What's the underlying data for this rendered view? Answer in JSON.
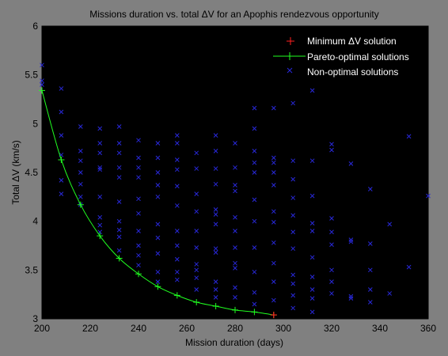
{
  "chart_data": {
    "type": "scatter",
    "title": "Missions duration vs. total ΔV for an Apophis rendezvous opportunity",
    "xlabel": "Mission duration (days)",
    "ylabel": "Total ΔV (km/s)",
    "xlim": [
      200,
      360
    ],
    "ylim": [
      3,
      6
    ],
    "xticks": [
      200,
      220,
      240,
      260,
      280,
      300,
      320,
      340,
      360
    ],
    "yticks": [
      3,
      3.5,
      4,
      4.5,
      5,
      5.5,
      6
    ],
    "grid": false,
    "legend_position": "top-right",
    "colors": {
      "figure_bg": "#808080",
      "axes_bg": "#000000",
      "minimum": "#ff2020",
      "pareto": "#20ff20",
      "non_optimal": "#2828d8",
      "legend_text": "#ffffff"
    },
    "series": [
      {
        "name": "Minimum ΔV solution",
        "marker": "+",
        "points": [
          [
            296,
            3.04
          ]
        ]
      },
      {
        "name": "Pareto-optimal solutions",
        "marker": "+",
        "line": true,
        "points": [
          [
            200,
            5.34
          ],
          [
            208,
            4.63
          ],
          [
            216,
            4.17
          ],
          [
            224,
            3.85
          ],
          [
            232,
            3.62
          ],
          [
            240,
            3.46
          ],
          [
            248,
            3.33
          ],
          [
            256,
            3.24
          ],
          [
            264,
            3.17
          ],
          [
            272,
            3.13
          ],
          [
            280,
            3.09
          ],
          [
            288,
            3.07
          ],
          [
            296,
            3.04
          ]
        ]
      },
      {
        "name": "Non-optimal solutions",
        "marker": "x",
        "points": [
          [
            200,
            5.6
          ],
          [
            200,
            5.44
          ],
          [
            200,
            5.4
          ],
          [
            208,
            5.36
          ],
          [
            208,
            5.12
          ],
          [
            208,
            4.88
          ],
          [
            208,
            4.68
          ],
          [
            208,
            4.42
          ],
          [
            208,
            4.28
          ],
          [
            216,
            4.97
          ],
          [
            216,
            4.72
          ],
          [
            216,
            4.62
          ],
          [
            216,
            4.5
          ],
          [
            216,
            4.38
          ],
          [
            216,
            4.25
          ],
          [
            216,
            4.17
          ],
          [
            224,
            4.95
          ],
          [
            224,
            4.8
          ],
          [
            224,
            4.7
          ],
          [
            224,
            4.55
          ],
          [
            224,
            4.53
          ],
          [
            224,
            4.25
          ],
          [
            224,
            4.04
          ],
          [
            224,
            3.96
          ],
          [
            224,
            3.89
          ],
          [
            232,
            4.97
          ],
          [
            232,
            4.8
          ],
          [
            232,
            4.7
          ],
          [
            232,
            4.55
          ],
          [
            232,
            4.45
          ],
          [
            232,
            4.2
          ],
          [
            232,
            4.0
          ],
          [
            232,
            3.91
          ],
          [
            232,
            3.84
          ],
          [
            232,
            3.7
          ],
          [
            240,
            4.83
          ],
          [
            240,
            4.65
          ],
          [
            240,
            4.55
          ],
          [
            240,
            4.45
          ],
          [
            240,
            4.23
          ],
          [
            240,
            4.08
          ],
          [
            240,
            3.9
          ],
          [
            240,
            3.75
          ],
          [
            240,
            3.65
          ],
          [
            240,
            3.55
          ],
          [
            248,
            4.8
          ],
          [
            248,
            4.65
          ],
          [
            248,
            4.5
          ],
          [
            248,
            4.37
          ],
          [
            248,
            4.25
          ],
          [
            248,
            3.97
          ],
          [
            248,
            3.83
          ],
          [
            248,
            3.67
          ],
          [
            248,
            3.48
          ],
          [
            248,
            3.38
          ],
          [
            256,
            4.88
          ],
          [
            256,
            4.8
          ],
          [
            256,
            4.63
          ],
          [
            256,
            4.53
          ],
          [
            256,
            4.36
          ],
          [
            256,
            4.16
          ],
          [
            256,
            3.9
          ],
          [
            256,
            3.75
          ],
          [
            256,
            3.61
          ],
          [
            256,
            3.48
          ],
          [
            256,
            3.4
          ],
          [
            264,
            4.7
          ],
          [
            264,
            4.54
          ],
          [
            264,
            4.28
          ],
          [
            264,
            4.1
          ],
          [
            264,
            3.9
          ],
          [
            264,
            3.73
          ],
          [
            264,
            3.56
          ],
          [
            264,
            3.5
          ],
          [
            264,
            3.42
          ],
          [
            264,
            3.3
          ],
          [
            272,
            4.88
          ],
          [
            272,
            4.72
          ],
          [
            272,
            4.54
          ],
          [
            272,
            4.38
          ],
          [
            272,
            4.12
          ],
          [
            272,
            4.07
          ],
          [
            272,
            3.97
          ],
          [
            272,
            3.72
          ],
          [
            272,
            3.68
          ],
          [
            272,
            3.38
          ],
          [
            272,
            3.3
          ],
          [
            272,
            3.22
          ],
          [
            280,
            4.8
          ],
          [
            280,
            4.55
          ],
          [
            280,
            4.37
          ],
          [
            280,
            4.31
          ],
          [
            280,
            4.04
          ],
          [
            280,
            3.9
          ],
          [
            280,
            3.73
          ],
          [
            280,
            3.57
          ],
          [
            280,
            3.52
          ],
          [
            280,
            3.32
          ],
          [
            280,
            3.22
          ],
          [
            288,
            5.16
          ],
          [
            288,
            4.95
          ],
          [
            288,
            4.72
          ],
          [
            288,
            4.6
          ],
          [
            288,
            4.5
          ],
          [
            288,
            4.22
          ],
          [
            288,
            4.0
          ],
          [
            288,
            3.73
          ],
          [
            288,
            3.48
          ],
          [
            288,
            3.27
          ],
          [
            288,
            3.15
          ],
          [
            296,
            5.16
          ],
          [
            296,
            4.65
          ],
          [
            296,
            4.6
          ],
          [
            296,
            4.5
          ],
          [
            296,
            4.37
          ],
          [
            296,
            4.1
          ],
          [
            296,
            3.99
          ],
          [
            296,
            3.78
          ],
          [
            296,
            3.57
          ],
          [
            296,
            3.38
          ],
          [
            296,
            3.19
          ],
          [
            304,
            5.21
          ],
          [
            304,
            4.62
          ],
          [
            304,
            4.43
          ],
          [
            304,
            4.24
          ],
          [
            304,
            4.06
          ],
          [
            304,
            3.89
          ],
          [
            304,
            3.72
          ],
          [
            304,
            3.45
          ],
          [
            304,
            3.36
          ],
          [
            304,
            3.24
          ],
          [
            304,
            3.11
          ],
          [
            312,
            5.34
          ],
          [
            312,
            4.62
          ],
          [
            312,
            4.26
          ],
          [
            312,
            3.98
          ],
          [
            312,
            3.9
          ],
          [
            312,
            3.63
          ],
          [
            312,
            3.43
          ],
          [
            312,
            3.3
          ],
          [
            312,
            3.21
          ],
          [
            312,
            3.07
          ],
          [
            320,
            4.79
          ],
          [
            320,
            4.73
          ],
          [
            320,
            4.03
          ],
          [
            320,
            3.89
          ],
          [
            320,
            3.76
          ],
          [
            320,
            3.5
          ],
          [
            320,
            3.38
          ],
          [
            320,
            3.26
          ],
          [
            328,
            4.59
          ],
          [
            328,
            3.81
          ],
          [
            328,
            3.79
          ],
          [
            328,
            3.23
          ],
          [
            328,
            3.21
          ],
          [
            336,
            4.33
          ],
          [
            336,
            3.77
          ],
          [
            336,
            3.5
          ],
          [
            336,
            3.3
          ],
          [
            336,
            3.17
          ],
          [
            344,
            3.97
          ],
          [
            344,
            3.26
          ],
          [
            352,
            4.87
          ],
          [
            352,
            3.53
          ],
          [
            360,
            4.26
          ]
        ]
      }
    ]
  }
}
